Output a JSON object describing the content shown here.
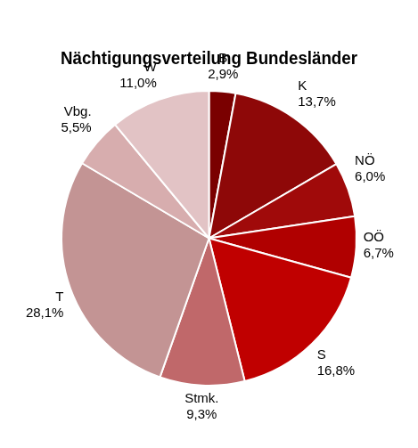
{
  "chart_data": {
    "type": "pie",
    "title": "Nächtigungsverteilung Bundesländer",
    "categories": [
      "B",
      "K",
      "NÖ",
      "OÖ",
      "S",
      "Stmk.",
      "T",
      "Vbg.",
      "W"
    ],
    "values": [
      2.9,
      13.7,
      6.0,
      6.7,
      16.8,
      9.3,
      28.1,
      5.5,
      11.0
    ],
    "value_labels": [
      "2,9%",
      "13,7%",
      "6,0%",
      "6,7%",
      "16,8%",
      "9,3%",
      "28,1%",
      "5,5%",
      "11,0%"
    ],
    "colors": [
      "#7a0000",
      "#8e0808",
      "#a00a0a",
      "#b00000",
      "#c00000",
      "#c0686a",
      "#c39494",
      "#d7adae",
      "#e2c3c5"
    ],
    "data_labels": true
  }
}
